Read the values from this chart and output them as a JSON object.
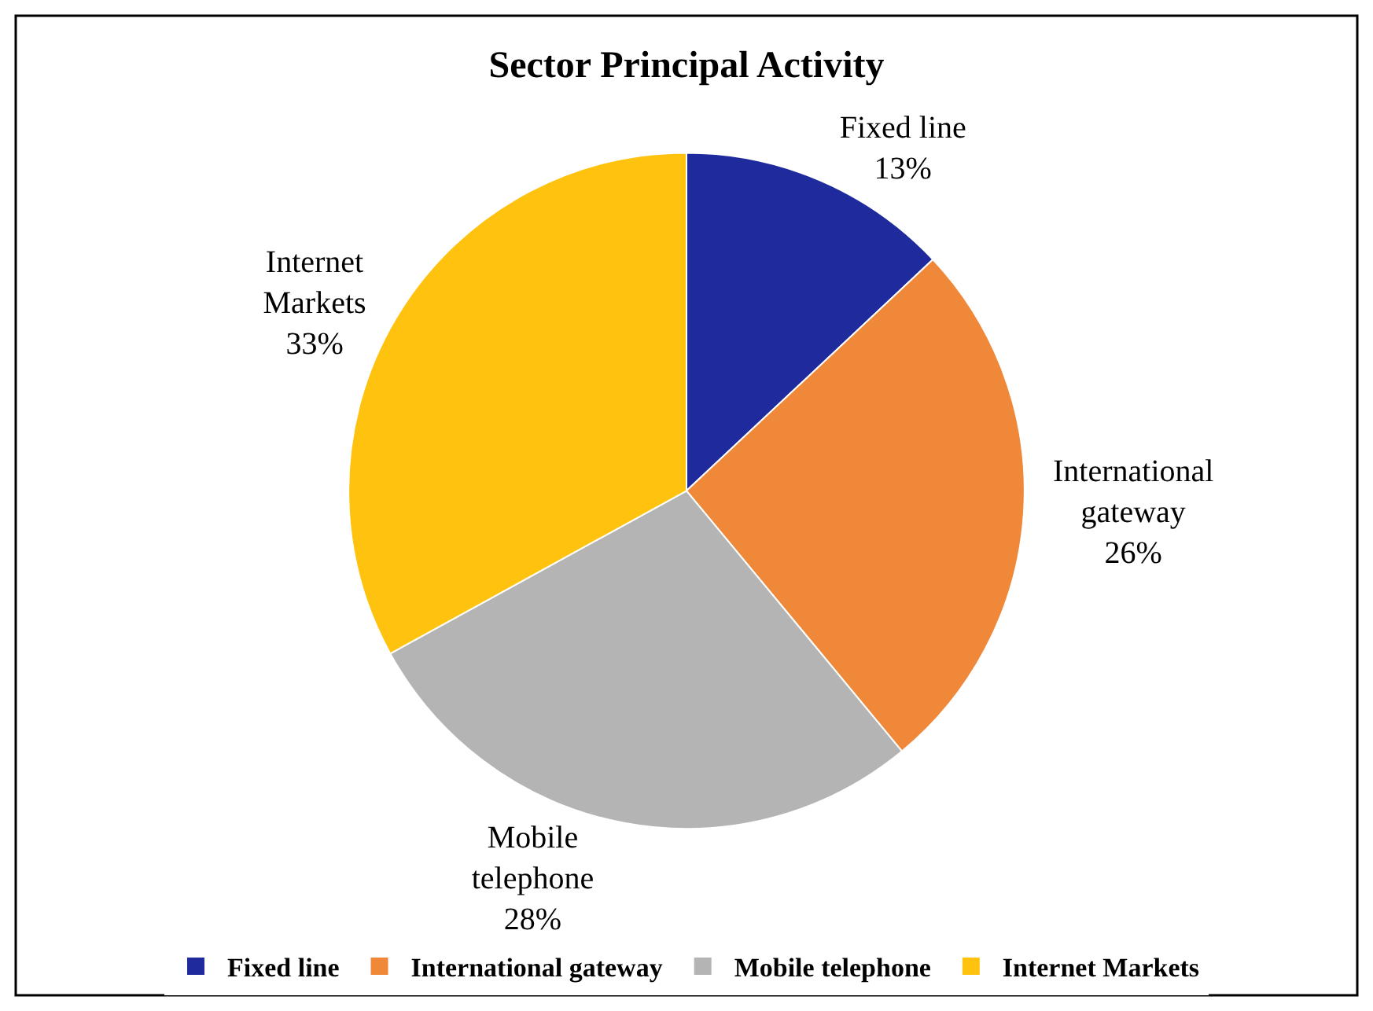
{
  "chart_data": {
    "type": "pie",
    "title": "Sector Principal Activity",
    "categories": [
      "Fixed line",
      "International gateway",
      "Mobile telephone",
      "Internet Markets"
    ],
    "values": [
      13,
      26,
      28,
      33
    ],
    "value_labels": [
      "13%",
      "26%",
      "28%",
      "33%"
    ],
    "colors": [
      "#1f2a9c",
      "#f0883a",
      "#b4b4b4",
      "#ffc20e"
    ],
    "legend": "bottom"
  }
}
